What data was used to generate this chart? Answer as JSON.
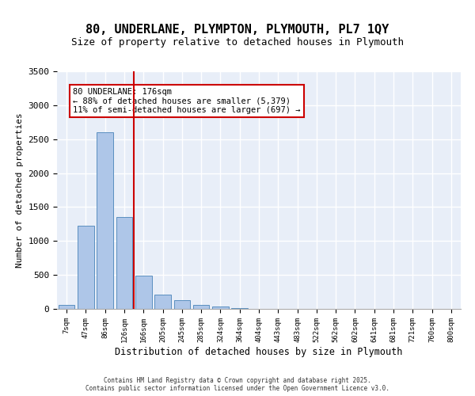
{
  "title_line1": "80, UNDERLANE, PLYMPTON, PLYMOUTH, PL7 1QY",
  "title_line2": "Size of property relative to detached houses in Plymouth",
  "xlabel": "Distribution of detached houses by size in Plymouth",
  "ylabel": "Number of detached properties",
  "categories": [
    "7sqm",
    "47sqm",
    "86sqm",
    "126sqm",
    "166sqm",
    "205sqm",
    "245sqm",
    "285sqm",
    "324sqm",
    "364sqm",
    "404sqm",
    "443sqm",
    "483sqm",
    "522sqm",
    "562sqm",
    "602sqm",
    "641sqm",
    "681sqm",
    "721sqm",
    "760sqm",
    "800sqm"
  ],
  "values": [
    60,
    1230,
    2600,
    1350,
    490,
    210,
    130,
    55,
    35,
    15,
    5,
    2,
    0,
    0,
    0,
    0,
    0,
    0,
    0,
    0,
    0
  ],
  "bar_color": "#aec6e8",
  "bar_edge_color": "#5a8fc0",
  "background_color": "#e8eef8",
  "grid_color": "#ffffff",
  "vline_x": 4,
  "vline_color": "#cc0000",
  "annotation_text": "80 UNDERLANE: 176sqm\n← 88% of detached houses are smaller (5,379)\n11% of semi-detached houses are larger (697) →",
  "annotation_box_color": "#ffffff",
  "annotation_box_edge": "#cc0000",
  "ylim": [
    0,
    3500
  ],
  "yticks": [
    0,
    500,
    1000,
    1500,
    2000,
    2500,
    3000,
    3500
  ],
  "footer_line1": "Contains HM Land Registry data © Crown copyright and database right 2025.",
  "footer_line2": "Contains public sector information licensed under the Open Government Licence v3.0."
}
